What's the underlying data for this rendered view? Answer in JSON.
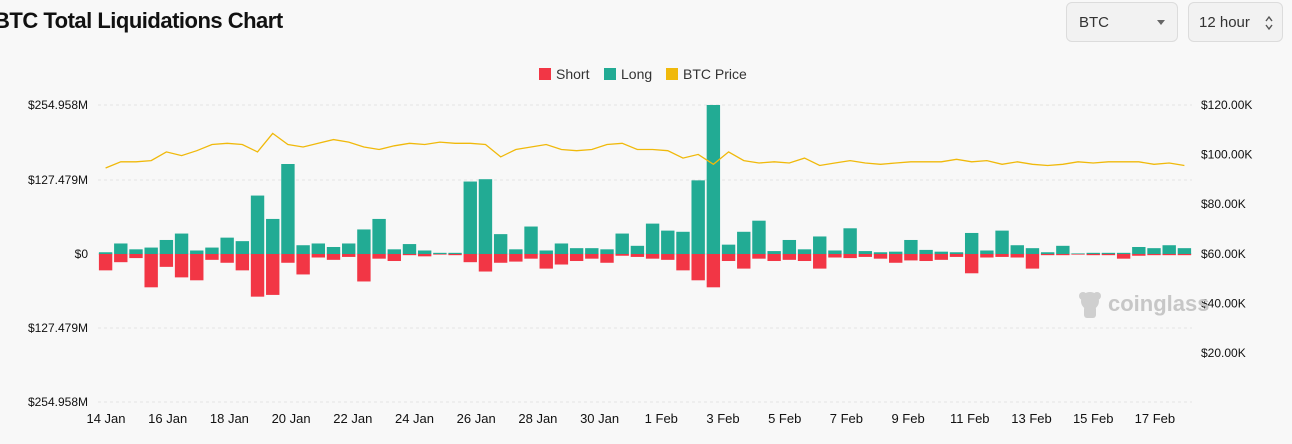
{
  "title": "BTC Total Liquidations Chart",
  "coin_select": {
    "value": "BTC",
    "icon": "chevron-down-icon"
  },
  "interval_select": {
    "value": "12 hour",
    "icon": "up-down-chevron-icon"
  },
  "watermark": {
    "text": "coinglass"
  },
  "colors": {
    "short": "#f23645",
    "long": "#22ab94",
    "price": "#f0b90b",
    "grid": "#e3e3e3"
  },
  "chart_data": {
    "type": "bar",
    "title": "",
    "legend": [
      "Short",
      "Long",
      "BTC Price"
    ],
    "legend_position": "top-center",
    "y_left_ticks": [
      "$254.958M",
      "$127.479M",
      "$0",
      "$127.479M",
      "$254.958M"
    ],
    "y_left_range": [
      -254.958,
      254.958
    ],
    "y_right_ticks": [
      "$120.00K",
      "$100.00K",
      "$80.00K",
      "$60.00K",
      "$40.00K",
      "$20.00K"
    ],
    "y_right_range": [
      0,
      120000
    ],
    "x_ticks": [
      "14 Jan",
      "16 Jan",
      "18 Jan",
      "20 Jan",
      "22 Jan",
      "24 Jan",
      "26 Jan",
      "28 Jan",
      "30 Jan",
      "1 Feb",
      "3 Feb",
      "5 Feb",
      "7 Feb",
      "9 Feb",
      "11 Feb",
      "13 Feb",
      "15 Feb",
      "17 Feb"
    ],
    "grid": true,
    "series": [
      {
        "name": "Long",
        "unit": "M USD",
        "values": [
          3,
          18,
          8,
          11,
          24,
          35,
          6,
          11,
          28,
          22,
          100,
          60,
          154,
          15,
          18,
          12,
          18,
          42,
          60,
          8,
          17,
          6,
          2,
          2,
          124,
          128,
          34,
          8,
          47,
          6,
          18,
          10,
          10,
          8,
          35,
          14,
          52,
          40,
          38,
          126,
          255,
          16,
          38,
          57,
          5,
          24,
          8,
          30,
          6,
          44,
          5,
          3,
          4,
          24,
          7,
          4,
          3,
          36,
          6,
          40,
          15,
          10,
          3,
          14,
          1,
          2,
          2,
          2,
          12,
          10,
          15,
          10
        ]
      },
      {
        "name": "Short",
        "unit": "M USD",
        "values": [
          28,
          14,
          7,
          57,
          22,
          40,
          45,
          10,
          15,
          28,
          73,
          70,
          15,
          35,
          6,
          10,
          5,
          47,
          8,
          12,
          2,
          4,
          1,
          2,
          14,
          30,
          15,
          13,
          8,
          25,
          18,
          12,
          8,
          15,
          3,
          5,
          8,
          10,
          28,
          45,
          57,
          12,
          25,
          8,
          12,
          10,
          12,
          25,
          6,
          7,
          5,
          8,
          15,
          11,
          12,
          10,
          5,
          33,
          6,
          5,
          6,
          25,
          2,
          2,
          1,
          2,
          2,
          8,
          3,
          2,
          2,
          2
        ]
      },
      {
        "name": "BTC Price",
        "unit": "USD",
        "values": [
          94500,
          97000,
          97000,
          97500,
          101000,
          99500,
          101500,
          104000,
          104500,
          104000,
          101000,
          108500,
          104000,
          103000,
          104500,
          106000,
          105000,
          103000,
          102000,
          103500,
          104500,
          104000,
          105000,
          104500,
          104500,
          104000,
          99000,
          102000,
          103000,
          104000,
          102000,
          101500,
          102000,
          104000,
          104500,
          102000,
          102000,
          101500,
          98500,
          100000,
          96000,
          101000,
          97500,
          96500,
          97000,
          96500,
          98500,
          95500,
          96500,
          97500,
          96500,
          96000,
          96500,
          97000,
          97000,
          97000,
          98000,
          97000,
          97500,
          96000,
          97000,
          96000,
          95500,
          96000,
          97000,
          96500,
          97000,
          97000,
          97000,
          96000,
          96500,
          95500
        ]
      }
    ]
  }
}
